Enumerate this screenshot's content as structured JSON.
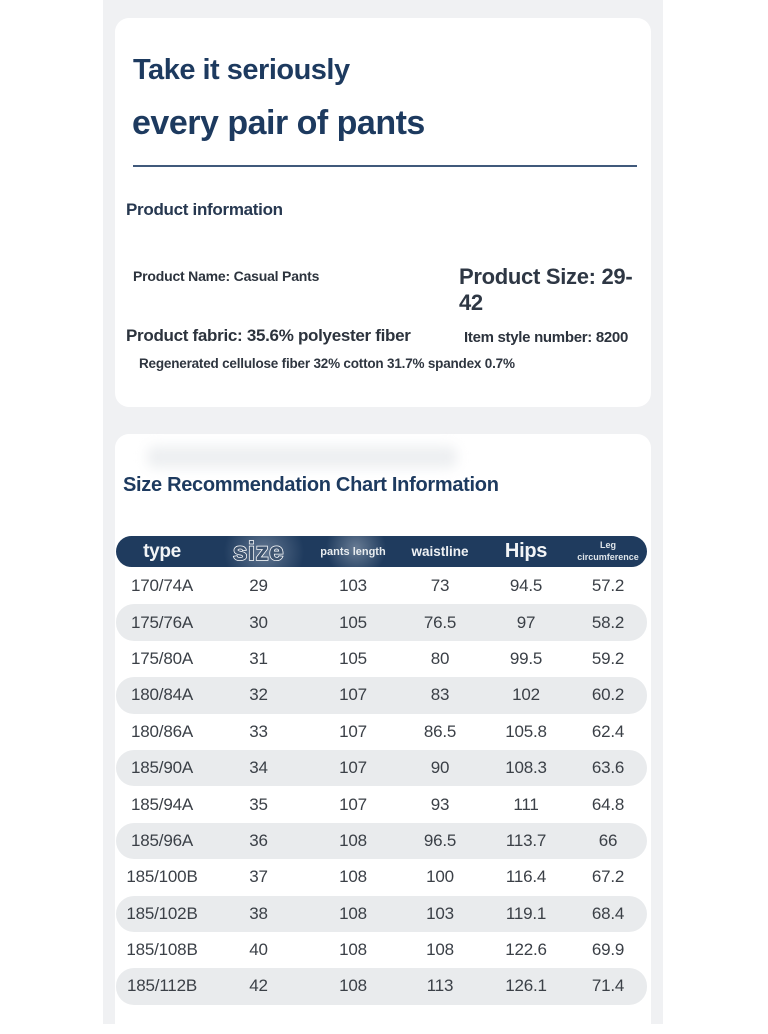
{
  "hero": {
    "line1": "Take it seriously",
    "line2": "every pair of pants"
  },
  "product_info": {
    "section_title": "Product information",
    "name": "Product Name: Casual Pants",
    "size": "Product Size: 29-42",
    "fabric": "Product fabric: 35.6% polyester fiber",
    "style_number": "Item style number: 8200",
    "fabric_detail": "Regenerated cellulose fiber 32% cotton 31.7% spandex 0.7%"
  },
  "size_chart": {
    "section_title": "Size Recommendation Chart Information",
    "columns": [
      "type",
      "size",
      "pants length",
      "waistline",
      "Hips",
      "Leg circumference"
    ],
    "rows": [
      [
        "170/74A",
        "29",
        "103",
        "73",
        "94.5",
        "57.2"
      ],
      [
        "175/76A",
        "30",
        "105",
        "76.5",
        "97",
        "58.2"
      ],
      [
        "175/80A",
        "31",
        "105",
        "80",
        "99.5",
        "59.2"
      ],
      [
        "180/84A",
        "32",
        "107",
        "83",
        "102",
        "60.2"
      ],
      [
        "180/86A",
        "33",
        "107",
        "86.5",
        "105.8",
        "62.4"
      ],
      [
        "185/90A",
        "34",
        "107",
        "90",
        "108.3",
        "63.6"
      ],
      [
        "185/94A",
        "35",
        "107",
        "93",
        "111",
        "64.8"
      ],
      [
        "185/96A",
        "36",
        "108",
        "96.5",
        "113.7",
        "66"
      ],
      [
        "185/100B",
        "37",
        "108",
        "100",
        "116.4",
        "67.2"
      ],
      [
        "185/102B",
        "38",
        "108",
        "103",
        "119.1",
        "68.4"
      ],
      [
        "185/108B",
        "40",
        "108",
        "108",
        "122.6",
        "69.9"
      ],
      [
        "185/112B",
        "42",
        "108",
        "113",
        "126.1",
        "71.4"
      ]
    ]
  },
  "colors": {
    "accent_navy": "#1d3a5f",
    "table_header_bg": "#1f3b5e",
    "table_header_text": "#f2f4f6",
    "row_alt_bg": "#e9ebed",
    "page_strip_bg": "#f0f1f3",
    "body_text": "#3b4047",
    "divider": "#40597b"
  }
}
